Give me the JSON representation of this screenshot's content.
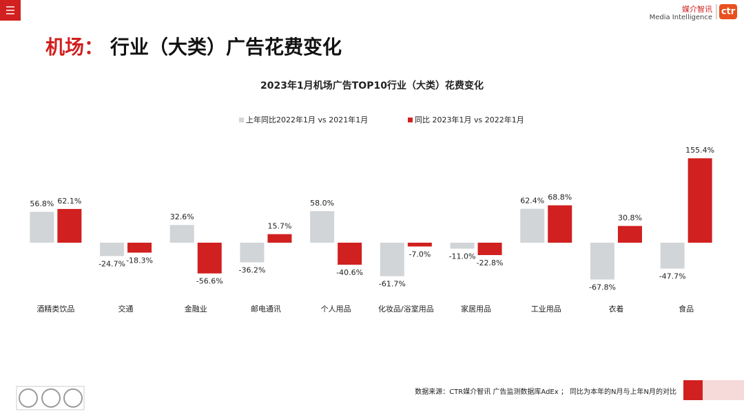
{
  "header": {
    "title_prefix": "机场：",
    "title": "行业（大类）广告花费变化",
    "logo_cn": "媒介智讯",
    "logo_en": "Media Intelligence",
    "logo_mark": "ctr"
  },
  "chart_data": {
    "type": "bar",
    "title": "2023年1月机场广告TOP10行业（大类）花费变化",
    "categories": [
      "酒精类饮品",
      "交通",
      "金融业",
      "邮电通讯",
      "个人用品",
      "化妆品/浴室用品",
      "家居用品",
      "工业用品",
      "衣着",
      "食品"
    ],
    "series": [
      {
        "name": "上年同比2022年1月  vs 2021年1月",
        "color": "#d1d5d8",
        "values": [
          56.8,
          -24.7,
          32.6,
          -36.2,
          58.0,
          -61.7,
          -11.0,
          62.4,
          -67.8,
          -47.7
        ],
        "value_labels": [
          "56.8%",
          "-24.7%",
          "32.6%",
          "-36.2%",
          "58.0%",
          "-61.7%",
          "-11.0%",
          "62.4%",
          "-67.8%",
          "-47.7%"
        ]
      },
      {
        "name": "同比 2023年1月  vs 2022年1月",
        "color": "#d0201f",
        "values": [
          62.1,
          -18.3,
          -56.6,
          15.7,
          -40.6,
          -7.0,
          -22.8,
          68.8,
          30.8,
          155.4
        ],
        "value_labels": [
          "62.1%",
          "-18.3%",
          "-56.6%",
          "15.7%",
          "-40.6%",
          "-7.0%",
          "-22.8%",
          "68.8%",
          "30.8%",
          "155.4%"
        ]
      }
    ]
  },
  "footer": {
    "source": "数据来源：CTR媒介智讯 广告监测数据库AdEx ；  同比为本年的N月与上年N月的对比"
  }
}
